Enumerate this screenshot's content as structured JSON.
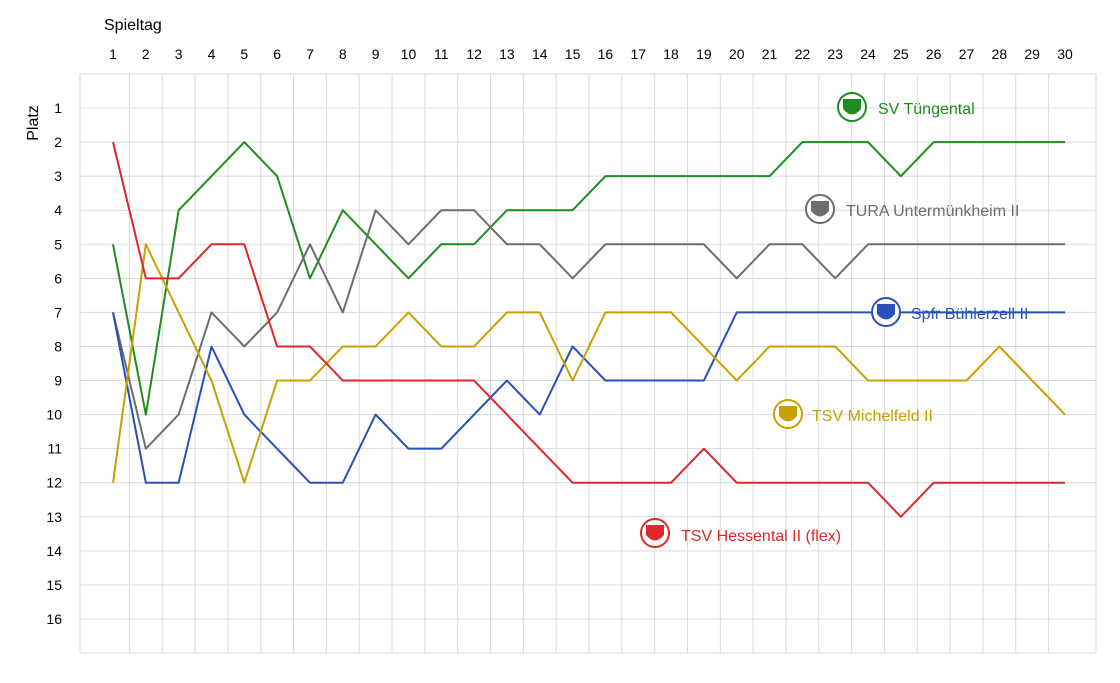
{
  "chart_data": {
    "type": "line",
    "xlabel": "Spieltag",
    "ylabel": "Platz",
    "x": [
      1,
      2,
      3,
      4,
      5,
      6,
      7,
      8,
      9,
      10,
      11,
      12,
      13,
      14,
      15,
      16,
      17,
      18,
      19,
      20,
      21,
      22,
      23,
      24,
      25,
      26,
      27,
      28,
      29,
      30
    ],
    "y_ticks": [
      1,
      2,
      3,
      4,
      5,
      6,
      7,
      8,
      9,
      10,
      11,
      12,
      13,
      14,
      15,
      16
    ],
    "ylim": [
      17,
      0
    ],
    "y_inverted": true,
    "grid": true,
    "series": [
      {
        "name": "SV Tüngental",
        "color": "#1e8c1e",
        "icon": "sv-tuengental-logo",
        "values": [
          5,
          10,
          4,
          3,
          2,
          3,
          6,
          4,
          5,
          6,
          5,
          5,
          4,
          4,
          4,
          3,
          3,
          3,
          3,
          3,
          3,
          2,
          2,
          2,
          3,
          2,
          2,
          2,
          2,
          2
        ]
      },
      {
        "name": "TURA Untermünkheim II",
        "color": "#6d6d6d",
        "icon": "tura-untermuenkheim-logo",
        "values": [
          7,
          11,
          10,
          7,
          8,
          7,
          5,
          7,
          4,
          5,
          4,
          4,
          5,
          5,
          6,
          5,
          5,
          5,
          5,
          6,
          5,
          5,
          6,
          5,
          5,
          5,
          5,
          5,
          5,
          5
        ]
      },
      {
        "name": "Spfr Bühlerzell II",
        "color": "#2850b8",
        "icon": "spfr-buehlerzell-logo",
        "values": [
          7,
          12,
          12,
          8,
          10,
          11,
          12,
          12,
          10,
          11,
          11,
          10,
          9,
          10,
          8,
          9,
          9,
          9,
          9,
          7,
          7,
          7,
          7,
          7,
          7,
          7,
          7,
          7,
          7,
          7
        ]
      },
      {
        "name": "TSV Michelfeld II",
        "color": "#c9a000",
        "icon": "tsv-michelfeld-logo",
        "values": [
          12,
          5,
          7,
          9,
          12,
          9,
          9,
          8,
          8,
          7,
          8,
          8,
          7,
          7,
          9,
          7,
          7,
          7,
          8,
          9,
          8,
          8,
          8,
          9,
          9,
          9,
          9,
          8,
          9,
          10
        ]
      },
      {
        "name": "TSV Hessental II (flex)",
        "color": "#dc2828",
        "icon": "tsv-hessental-logo",
        "values": [
          2,
          6,
          6,
          5,
          5,
          8,
          8,
          9,
          9,
          9,
          9,
          9,
          10,
          11,
          12,
          12,
          12,
          12,
          11,
          12,
          12,
          12,
          12,
          12,
          13,
          12,
          12,
          12,
          12,
          12
        ]
      }
    ]
  }
}
